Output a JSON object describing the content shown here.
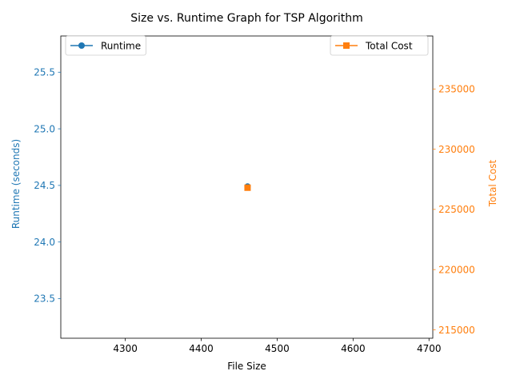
{
  "chart_data": {
    "type": "line",
    "title": "Size vs. Runtime Graph for TSP Algorithm",
    "xlabel": "File Size",
    "xlim": [
      4215,
      4705
    ],
    "xticks": [
      4300,
      4400,
      4500,
      4600,
      4700
    ],
    "grid": false,
    "axes": {
      "left": {
        "label": "Runtime (seconds)",
        "color": "#1f77b4",
        "ylim": [
          23.15,
          25.82
        ],
        "ticks": [
          23.5,
          24.0,
          24.5,
          25.0,
          25.5
        ],
        "tick_labels": [
          "23.5",
          "24.0",
          "24.5",
          "25.0",
          "25.5"
        ]
      },
      "right": {
        "label": "Total Cost",
        "color": "#ff7f0e",
        "ylim": [
          214300,
          239400
        ],
        "ticks": [
          215000,
          220000,
          225000,
          230000,
          235000
        ],
        "tick_labels": [
          "215000",
          "220000",
          "225000",
          "230000",
          "235000"
        ]
      }
    },
    "series": [
      {
        "name": "Runtime",
        "axis": "left",
        "marker": "circle",
        "color": "#1f77b4",
        "x": [
          4461
        ],
        "y": [
          24.49
        ]
      },
      {
        "name": "Total Cost",
        "axis": "right",
        "marker": "square",
        "color": "#ff7f0e",
        "x": [
          4461
        ],
        "y": [
          226800
        ]
      }
    ],
    "legends": [
      {
        "position": "upper-left",
        "entries": [
          "Runtime"
        ]
      },
      {
        "position": "upper-right",
        "entries": [
          "Total Cost"
        ]
      }
    ]
  }
}
